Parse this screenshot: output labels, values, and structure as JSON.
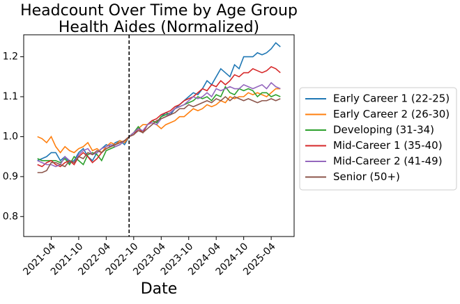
{
  "chart_data": {
    "type": "line",
    "title": "Headcount Over Time by Age Group",
    "subtitle": "Health Aides (Normalized)",
    "xlabel": "Date",
    "x": [
      "2021-01",
      "2021-02",
      "2021-03",
      "2021-04",
      "2021-05",
      "2021-06",
      "2021-07",
      "2021-08",
      "2021-09",
      "2021-10",
      "2021-11",
      "2021-12",
      "2022-01",
      "2022-02",
      "2022-03",
      "2022-04",
      "2022-05",
      "2022-06",
      "2022-07",
      "2022-08",
      "2022-09",
      "2022-10",
      "2022-11",
      "2022-12",
      "2023-01",
      "2023-02",
      "2023-03",
      "2023-04",
      "2023-05",
      "2023-06",
      "2023-07",
      "2023-08",
      "2023-09",
      "2023-10",
      "2023-11",
      "2023-12",
      "2024-01",
      "2024-02",
      "2024-03",
      "2024-04",
      "2024-05",
      "2024-06",
      "2024-07",
      "2024-08",
      "2024-09",
      "2024-10",
      "2024-11",
      "2024-12",
      "2025-01",
      "2025-02",
      "2025-03",
      "2025-04",
      "2025-05",
      "2025-06"
    ],
    "series": [
      {
        "name": "Early Career 1 (22-25)",
        "color": "#1f77b4",
        "values": [
          0.94,
          0.945,
          0.95,
          0.96,
          0.96,
          0.94,
          0.95,
          0.935,
          0.94,
          0.96,
          0.97,
          0.95,
          0.94,
          0.96,
          0.97,
          0.98,
          0.975,
          0.985,
          0.99,
          0.98,
          1.0,
          1.01,
          1.02,
          1.01,
          1.03,
          1.04,
          1.035,
          1.05,
          1.06,
          1.055,
          1.07,
          1.08,
          1.09,
          1.1,
          1.11,
          1.105,
          1.12,
          1.14,
          1.13,
          1.15,
          1.17,
          1.16,
          1.15,
          1.18,
          1.17,
          1.2,
          1.2,
          1.2,
          1.21,
          1.205,
          1.21,
          1.22,
          1.235,
          1.225
        ]
      },
      {
        "name": "Early Career 2 (26-30)",
        "color": "#ff7f0e",
        "values": [
          1.0,
          0.995,
          0.985,
          1.0,
          0.975,
          0.96,
          0.975,
          0.965,
          0.96,
          0.97,
          0.975,
          0.985,
          0.965,
          0.97,
          0.96,
          0.975,
          0.985,
          0.98,
          0.99,
          0.985,
          1.0,
          1.01,
          1.02,
          1.03,
          1.03,
          1.035,
          1.03,
          1.02,
          1.03,
          1.035,
          1.04,
          1.05,
          1.05,
          1.06,
          1.07,
          1.065,
          1.07,
          1.08,
          1.075,
          1.08,
          1.09,
          1.085,
          1.1,
          1.095,
          1.1,
          1.1,
          1.11,
          1.105,
          1.11,
          1.105,
          1.1,
          1.11,
          1.12,
          1.12
        ]
      },
      {
        "name": "Developing (31-34)",
        "color": "#2ca02c",
        "values": [
          0.945,
          0.94,
          0.94,
          0.94,
          0.94,
          0.935,
          0.945,
          0.93,
          0.95,
          0.94,
          0.93,
          0.955,
          0.96,
          0.955,
          0.94,
          0.965,
          0.97,
          0.975,
          0.98,
          0.99,
          1.0,
          1.01,
          1.025,
          1.01,
          1.03,
          1.04,
          1.035,
          1.05,
          1.055,
          1.06,
          1.07,
          1.075,
          1.08,
          1.085,
          1.09,
          1.1,
          1.095,
          1.1,
          1.09,
          1.105,
          1.1,
          1.125,
          1.11,
          1.105,
          1.12,
          1.115,
          1.12,
          1.115,
          1.1,
          1.11,
          1.11,
          1.1,
          1.105,
          1.1
        ]
      },
      {
        "name": "Mid-Career 1 (35-40)",
        "color": "#d62728",
        "values": [
          0.93,
          0.925,
          0.935,
          0.94,
          0.93,
          0.925,
          0.935,
          0.94,
          0.93,
          0.95,
          0.96,
          0.95,
          0.935,
          0.945,
          0.96,
          0.97,
          0.975,
          0.98,
          0.985,
          0.99,
          1.0,
          1.005,
          1.02,
          1.01,
          1.03,
          1.04,
          1.045,
          1.055,
          1.06,
          1.065,
          1.075,
          1.08,
          1.09,
          1.095,
          1.1,
          1.11,
          1.12,
          1.115,
          1.13,
          1.125,
          1.14,
          1.13,
          1.14,
          1.155,
          1.15,
          1.16,
          1.16,
          1.17,
          1.165,
          1.16,
          1.165,
          1.175,
          1.17,
          1.16
        ]
      },
      {
        "name": "Mid-Career 2 (41-49)",
        "color": "#9467bd",
        "values": [
          0.94,
          0.935,
          0.93,
          0.93,
          0.925,
          0.93,
          0.95,
          0.94,
          0.935,
          0.955,
          0.965,
          0.97,
          0.955,
          0.96,
          0.97,
          0.975,
          0.98,
          0.975,
          0.98,
          0.99,
          1.0,
          1.01,
          1.02,
          1.015,
          1.03,
          1.035,
          1.03,
          1.045,
          1.05,
          1.06,
          1.07,
          1.075,
          1.08,
          1.09,
          1.1,
          1.095,
          1.1,
          1.11,
          1.1,
          1.12,
          1.115,
          1.12,
          1.125,
          1.12,
          1.12,
          1.13,
          1.125,
          1.12,
          1.125,
          1.13,
          1.12,
          1.135,
          1.125,
          1.12
        ]
      },
      {
        "name": "Senior (50+)",
        "color": "#8c564b",
        "values": [
          0.91,
          0.91,
          0.915,
          0.935,
          0.935,
          0.93,
          0.925,
          0.94,
          0.935,
          0.95,
          0.945,
          0.96,
          0.955,
          0.965,
          0.96,
          0.97,
          0.975,
          0.98,
          0.985,
          0.99,
          1.0,
          1.005,
          1.015,
          1.01,
          1.02,
          1.03,
          1.04,
          1.045,
          1.05,
          1.055,
          1.06,
          1.07,
          1.07,
          1.08,
          1.075,
          1.08,
          1.085,
          1.09,
          1.085,
          1.095,
          1.09,
          1.1,
          1.09,
          1.1,
          1.095,
          1.09,
          1.095,
          1.09,
          1.085,
          1.09,
          1.09,
          1.095,
          1.09,
          1.095
        ]
      }
    ],
    "vline": "2022-09",
    "xlim": [
      "2020-10",
      "2025-09"
    ],
    "xticks": [
      "2021-04",
      "2021-10",
      "2022-04",
      "2022-10",
      "2023-04",
      "2023-10",
      "2024-04",
      "2024-10",
      "2025-04"
    ],
    "ylim": [
      0.75,
      1.255
    ],
    "yticks": [
      0.8,
      0.9,
      {
        "value": 1,
        "label": "1.0"
      },
      1.1,
      1.2
    ],
    "legend": "outside-right"
  }
}
